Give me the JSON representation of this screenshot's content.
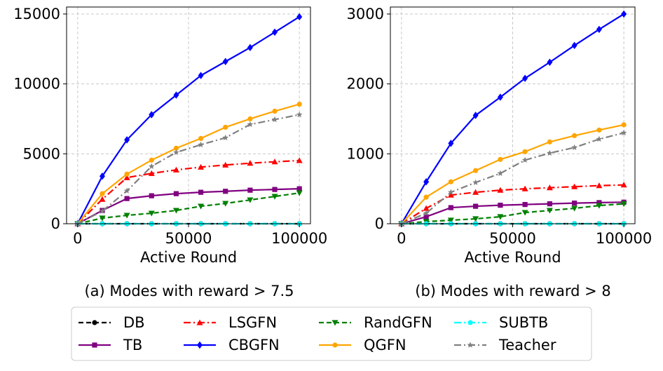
{
  "chart_data": [
    {
      "type": "line",
      "panel_label": "(a) Modes with reward > 7.5",
      "xlabel": "Active Round",
      "ylabel": "",
      "xlim": [
        -5000,
        105000
      ],
      "ylim": [
        0,
        15500
      ],
      "xticks": [
        0,
        50000,
        100000
      ],
      "xtick_labels": [
        "0",
        "50000",
        "100000"
      ],
      "yticks": [
        0,
        5000,
        10000,
        15000
      ],
      "ytick_labels": [
        "0",
        "5000",
        "10000",
        "15000"
      ],
      "grid": true,
      "x": [
        0,
        11111,
        22222,
        33333,
        44444,
        55556,
        66667,
        77778,
        88889,
        100000
      ],
      "series": [
        {
          "name": "DB",
          "values": [
            0,
            0,
            0,
            0,
            0,
            0,
            0,
            0,
            0,
            0
          ]
        },
        {
          "name": "TB",
          "values": [
            0,
            950,
            1800,
            2000,
            2150,
            2250,
            2320,
            2400,
            2450,
            2500
          ]
        },
        {
          "name": "LSGFN",
          "values": [
            0,
            1750,
            3300,
            3600,
            3850,
            4050,
            4200,
            4330,
            4430,
            4520
          ]
        },
        {
          "name": "CBGFN",
          "values": [
            0,
            3400,
            6000,
            7800,
            9200,
            10600,
            11600,
            12600,
            13700,
            14800
          ]
        },
        {
          "name": "RandGFN",
          "values": [
            0,
            400,
            600,
            750,
            950,
            1250,
            1450,
            1700,
            1950,
            2200
          ]
        },
        {
          "name": "QGFN",
          "values": [
            0,
            2150,
            3550,
            4550,
            5400,
            6100,
            6900,
            7500,
            8050,
            8550
          ]
        },
        {
          "name": "SUBTB",
          "values": [
            0,
            0,
            0,
            0,
            0,
            0,
            0,
            0,
            0,
            0
          ]
        },
        {
          "name": "Teacher",
          "values": [
            0,
            900,
            2350,
            4100,
            5100,
            5650,
            6150,
            7100,
            7450,
            7800
          ]
        }
      ]
    },
    {
      "type": "line",
      "panel_label": "(b) Modes with reward > 8",
      "xlabel": "Active Round",
      "ylabel": "",
      "xlim": [
        -5000,
        105000
      ],
      "ylim": [
        0,
        3100
      ],
      "xticks": [
        0,
        50000,
        100000
      ],
      "xtick_labels": [
        "0",
        "50000",
        "100000"
      ],
      "yticks": [
        0,
        1000,
        2000,
        3000
      ],
      "ytick_labels": [
        "0",
        "1000",
        "2000",
        "3000"
      ],
      "grid": true,
      "x": [
        0,
        11111,
        22222,
        33333,
        44444,
        55556,
        66667,
        77778,
        88889,
        100000
      ],
      "series": [
        {
          "name": "DB",
          "values": [
            0,
            0,
            0,
            0,
            0,
            0,
            0,
            0,
            0,
            0
          ]
        },
        {
          "name": "TB",
          "values": [
            0,
            100,
            230,
            250,
            265,
            275,
            285,
            295,
            302,
            308
          ]
        },
        {
          "name": "LSGFN",
          "values": [
            0,
            220,
            410,
            450,
            480,
            500,
            515,
            530,
            545,
            555
          ]
        },
        {
          "name": "CBGFN",
          "values": [
            0,
            600,
            1150,
            1550,
            1810,
            2080,
            2310,
            2550,
            2780,
            3000
          ]
        },
        {
          "name": "RandGFN",
          "values": [
            0,
            30,
            50,
            70,
            100,
            160,
            190,
            220,
            260,
            285
          ]
        },
        {
          "name": "QGFN",
          "values": [
            0,
            380,
            600,
            760,
            920,
            1030,
            1170,
            1260,
            1340,
            1415
          ]
        },
        {
          "name": "SUBTB",
          "values": [
            0,
            0,
            0,
            0,
            0,
            0,
            0,
            0,
            0,
            0
          ]
        },
        {
          "name": "Teacher",
          "values": [
            0,
            150,
            450,
            590,
            720,
            910,
            1010,
            1090,
            1210,
            1300
          ]
        }
      ]
    }
  ],
  "legend": {
    "placement": "bottom",
    "entries": [
      {
        "name": "DB",
        "color": "#000000",
        "dash": "dashed",
        "marker": "circle"
      },
      {
        "name": "LSGFN",
        "color": "#ff0000",
        "dash": "dashdot",
        "marker": "triangle-up"
      },
      {
        "name": "RandGFN",
        "color": "#008000",
        "dash": "dashed",
        "marker": "triangle-down"
      },
      {
        "name": "SUBTB",
        "color": "#00ffff",
        "dash": "dashdot",
        "marker": "pentagon"
      },
      {
        "name": "TB",
        "color": "#800080",
        "dash": "solid",
        "marker": "square"
      },
      {
        "name": "CBGFN",
        "color": "#0000ff",
        "dash": "solid",
        "marker": "diamond"
      },
      {
        "name": "QGFN",
        "color": "#ffa500",
        "dash": "solid",
        "marker": "circle"
      },
      {
        "name": "Teacher",
        "color": "#808080",
        "dash": "dashdot",
        "marker": "star"
      }
    ]
  }
}
